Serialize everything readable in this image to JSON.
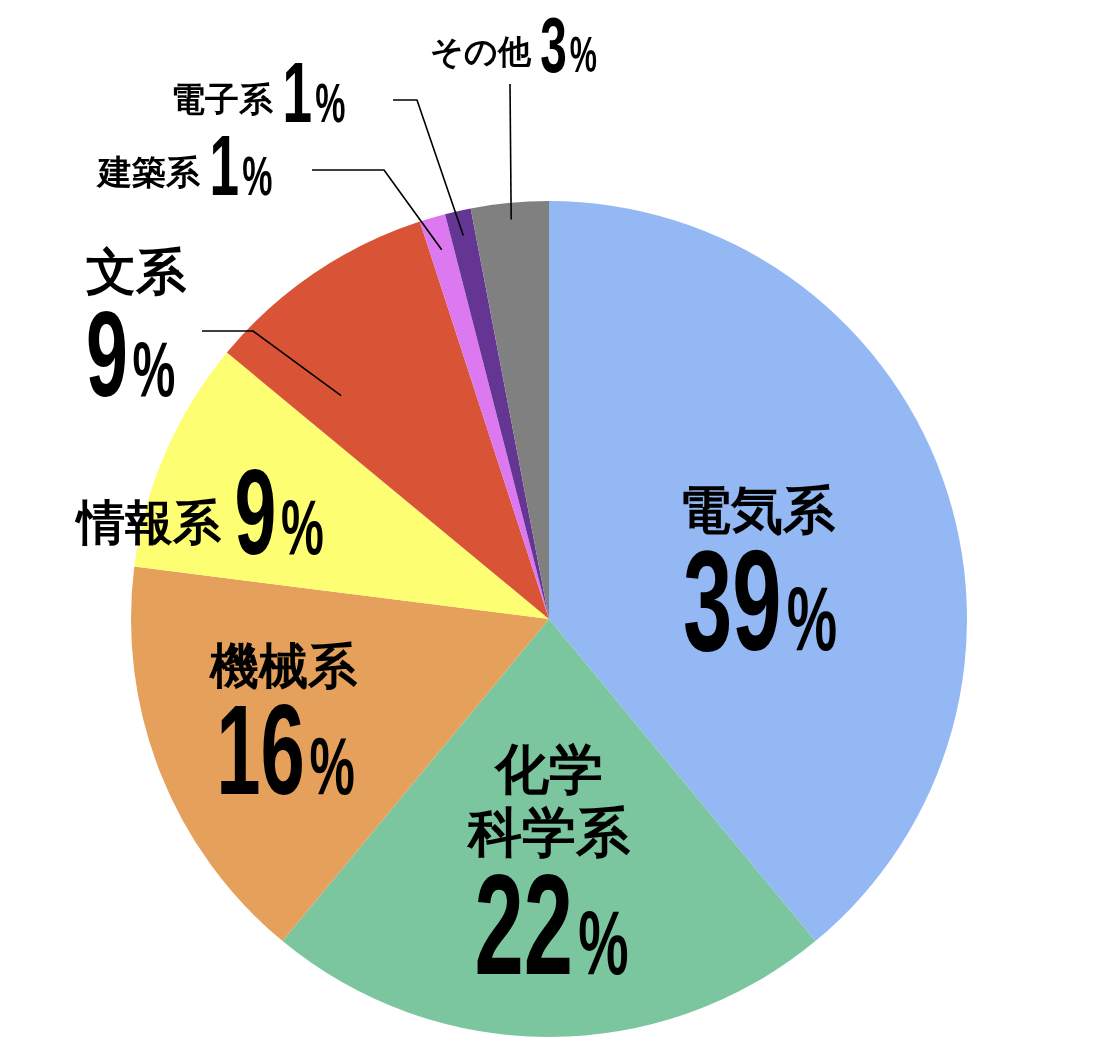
{
  "chart_data": {
    "type": "pie",
    "categories": [
      "電気系",
      "化学科学系",
      "機械系",
      "情報系",
      "文系",
      "建築系",
      "電子系",
      "その他"
    ],
    "values": [
      39,
      22,
      16,
      9,
      9,
      1,
      1,
      3
    ],
    "colors": [
      "#94b8f4",
      "#7cc69f",
      "#e5a05c",
      "#fefe72",
      "#d95336",
      "#dc78f0",
      "#653594",
      "#808080"
    ],
    "value_labels": [
      "39%",
      "22%",
      "16%",
      "9%",
      "9%",
      "1%",
      "1%",
      "3%"
    ]
  }
}
